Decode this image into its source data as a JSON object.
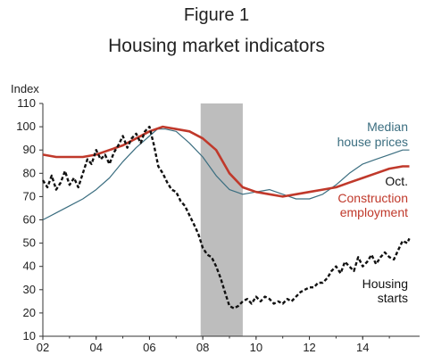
{
  "figure_label": "Figure 1",
  "figure_title": "Housing market indicators",
  "chart_data": {
    "type": "line",
    "title": "Housing market indicators",
    "ylabel": "Index",
    "xlabel": "",
    "xlim": [
      2002.0,
      2015.8
    ],
    "ylim": [
      10,
      110
    ],
    "yticks": [
      10,
      20,
      30,
      40,
      50,
      60,
      70,
      80,
      90,
      100,
      110
    ],
    "xticks": [
      {
        "value": 2002,
        "label": "02"
      },
      {
        "value": 2004,
        "label": "04"
      },
      {
        "value": 2006,
        "label": "06"
      },
      {
        "value": 2008,
        "label": "08"
      },
      {
        "value": 2010,
        "label": "10"
      },
      {
        "value": 2012,
        "label": "12"
      },
      {
        "value": 2014,
        "label": "14"
      }
    ],
    "recession": {
      "start": 2007.92,
      "end": 2009.5,
      "color": "#bdbdbd"
    },
    "annotations": [
      {
        "text": "Median",
        "color": "#3b6e80"
      },
      {
        "text": "house prices",
        "color": "#3b6e80"
      },
      {
        "text": "Oct.",
        "color": "#111111"
      },
      {
        "text": "Construction",
        "color": "#c0392b"
      },
      {
        "text": "employment",
        "color": "#c0392b"
      },
      {
        "text": "Housing",
        "color": "#111111"
      },
      {
        "text": "starts",
        "color": "#111111"
      }
    ],
    "series": [
      {
        "name": "Median house prices",
        "color": "#3b6e80",
        "style": "solid",
        "points": [
          [
            2002.0,
            60
          ],
          [
            2002.5,
            63
          ],
          [
            2003.0,
            66
          ],
          [
            2003.5,
            69
          ],
          [
            2004.0,
            73
          ],
          [
            2004.5,
            78
          ],
          [
            2005.0,
            85
          ],
          [
            2005.5,
            91
          ],
          [
            2006.0,
            96
          ],
          [
            2006.3,
            99
          ],
          [
            2006.6,
            99
          ],
          [
            2007.0,
            98
          ],
          [
            2007.5,
            93
          ],
          [
            2008.0,
            87
          ],
          [
            2008.5,
            79
          ],
          [
            2009.0,
            73
          ],
          [
            2009.5,
            71
          ],
          [
            2010.0,
            72
          ],
          [
            2010.5,
            73
          ],
          [
            2011.0,
            71
          ],
          [
            2011.5,
            69
          ],
          [
            2012.0,
            69
          ],
          [
            2012.5,
            71
          ],
          [
            2013.0,
            75
          ],
          [
            2013.5,
            80
          ],
          [
            2014.0,
            84
          ],
          [
            2014.5,
            86
          ],
          [
            2015.0,
            88
          ],
          [
            2015.5,
            90
          ],
          [
            2015.75,
            90
          ]
        ]
      },
      {
        "name": "Construction employment",
        "color": "#c0392b",
        "style": "solid-thick",
        "points": [
          [
            2002.0,
            88
          ],
          [
            2002.5,
            87
          ],
          [
            2003.0,
            87
          ],
          [
            2003.5,
            87
          ],
          [
            2004.0,
            88
          ],
          [
            2004.5,
            90
          ],
          [
            2005.0,
            92
          ],
          [
            2005.5,
            95
          ],
          [
            2006.0,
            98
          ],
          [
            2006.5,
            100
          ],
          [
            2007.0,
            99
          ],
          [
            2007.5,
            98
          ],
          [
            2008.0,
            95
          ],
          [
            2008.5,
            90
          ],
          [
            2009.0,
            80
          ],
          [
            2009.5,
            74
          ],
          [
            2010.0,
            72
          ],
          [
            2010.5,
            71
          ],
          [
            2011.0,
            70
          ],
          [
            2011.5,
            71
          ],
          [
            2012.0,
            72
          ],
          [
            2012.5,
            73
          ],
          [
            2013.0,
            74
          ],
          [
            2013.5,
            76
          ],
          [
            2014.0,
            78
          ],
          [
            2014.5,
            80
          ],
          [
            2015.0,
            82
          ],
          [
            2015.5,
            83
          ],
          [
            2015.75,
            83
          ]
        ]
      },
      {
        "name": "Housing starts",
        "color": "#111111",
        "style": "dashed",
        "points": [
          [
            2002.0,
            77
          ],
          [
            2002.17,
            74
          ],
          [
            2002.33,
            79
          ],
          [
            2002.5,
            73
          ],
          [
            2002.67,
            76
          ],
          [
            2002.83,
            81
          ],
          [
            2003.0,
            75
          ],
          [
            2003.17,
            78
          ],
          [
            2003.33,
            74
          ],
          [
            2003.5,
            80
          ],
          [
            2003.67,
            86
          ],
          [
            2003.83,
            84
          ],
          [
            2004.0,
            90
          ],
          [
            2004.17,
            86
          ],
          [
            2004.33,
            88
          ],
          [
            2004.5,
            84
          ],
          [
            2004.67,
            89
          ],
          [
            2004.83,
            92
          ],
          [
            2005.0,
            96
          ],
          [
            2005.17,
            91
          ],
          [
            2005.33,
            95
          ],
          [
            2005.5,
            97
          ],
          [
            2005.67,
            93
          ],
          [
            2005.83,
            98
          ],
          [
            2006.0,
            100
          ],
          [
            2006.17,
            92
          ],
          [
            2006.33,
            83
          ],
          [
            2006.5,
            80
          ],
          [
            2006.67,
            76
          ],
          [
            2006.83,
            73
          ],
          [
            2007.0,
            72
          ],
          [
            2007.17,
            68
          ],
          [
            2007.33,
            66
          ],
          [
            2007.5,
            62
          ],
          [
            2007.67,
            58
          ],
          [
            2007.83,
            54
          ],
          [
            2008.0,
            48
          ],
          [
            2008.17,
            45
          ],
          [
            2008.33,
            44
          ],
          [
            2008.5,
            40
          ],
          [
            2008.67,
            35
          ],
          [
            2008.83,
            29
          ],
          [
            2009.0,
            23
          ],
          [
            2009.17,
            22
          ],
          [
            2009.33,
            23
          ],
          [
            2009.5,
            25
          ],
          [
            2009.67,
            26
          ],
          [
            2009.83,
            24
          ],
          [
            2010.0,
            27
          ],
          [
            2010.17,
            25
          ],
          [
            2010.33,
            27
          ],
          [
            2010.5,
            26
          ],
          [
            2010.67,
            24
          ],
          [
            2010.83,
            25
          ],
          [
            2011.0,
            24
          ],
          [
            2011.17,
            26
          ],
          [
            2011.33,
            25
          ],
          [
            2011.5,
            27
          ],
          [
            2011.67,
            29
          ],
          [
            2011.83,
            30
          ],
          [
            2012.0,
            31
          ],
          [
            2012.17,
            31
          ],
          [
            2012.33,
            33
          ],
          [
            2012.5,
            33
          ],
          [
            2012.67,
            35
          ],
          [
            2012.83,
            38
          ],
          [
            2013.0,
            40
          ],
          [
            2013.17,
            37
          ],
          [
            2013.33,
            42
          ],
          [
            2013.5,
            40
          ],
          [
            2013.67,
            38
          ],
          [
            2013.83,
            44
          ],
          [
            2014.0,
            40
          ],
          [
            2014.17,
            42
          ],
          [
            2014.33,
            45
          ],
          [
            2014.5,
            41
          ],
          [
            2014.67,
            44
          ],
          [
            2014.83,
            46
          ],
          [
            2015.0,
            44
          ],
          [
            2015.17,
            43
          ],
          [
            2015.33,
            47
          ],
          [
            2015.5,
            51
          ],
          [
            2015.67,
            50
          ],
          [
            2015.75,
            52
          ]
        ]
      }
    ]
  }
}
